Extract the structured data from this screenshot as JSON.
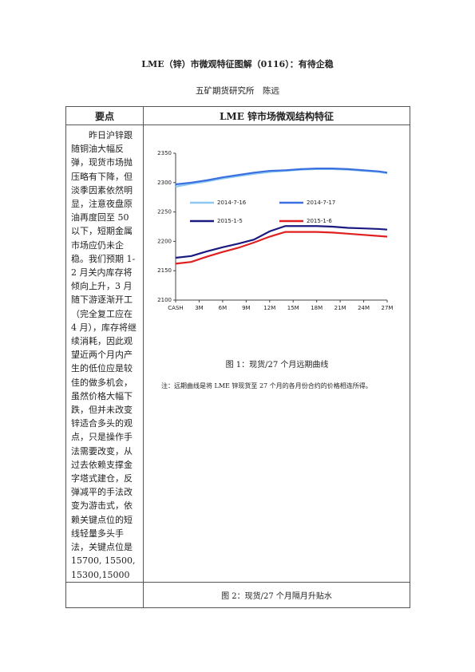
{
  "header": {
    "title": "LME（锌）市微观特征图解（0116）：有待企稳",
    "author": "五矿期货研究所　陈远"
  },
  "table": {
    "headers": [
      "要点",
      "LME 锌市场微观结构特征"
    ],
    "summary": "昨日沪锌跟随铜油大幅反弹，现货市场抛压略有下降，但淡季因素依然明显，注意夜盘原油再度回至 50 以下，短期金属市场应仍未企稳。我们预期 1-2 月关内库存将倾向上升，3 月随下游逐渐开工（完全复工应在 4 月），库存将继续消耗，因此观望近两个月内产生的低位应是较佳的做多机会，虽然价格大幅下跌，但并未改变锌适合多头的观点，只是操作手法需要改变，从过去依赖支撑金字塔式建仓，反弹减平的手法改变为游击式，依赖关键点位的短线轻量多头手法，关键点位是 15700, 15500,15300,15000",
    "figure1": {
      "caption": "图 1：现货/27 个月远期曲线",
      "note": "注：远期曲线是将 LME 锌现货至 27 个月的各月份合约的价格相连所得。"
    },
    "figure2": {
      "caption": "图 2：现货/27 个月隔月升贴水"
    }
  },
  "chart_data": {
    "type": "line",
    "x": [
      0,
      2,
      4,
      6,
      8,
      10,
      12,
      14,
      16,
      18,
      20,
      22,
      24,
      26,
      27
    ],
    "xlim": [
      0,
      27
    ],
    "xticks": [
      {
        "value": 0,
        "label": "CASH"
      },
      {
        "value": 3,
        "label": "3M"
      },
      {
        "value": 6,
        "label": "6M"
      },
      {
        "value": 9,
        "label": "9M"
      },
      {
        "value": 12,
        "label": "12M"
      },
      {
        "value": 15,
        "label": "15M"
      },
      {
        "value": 18,
        "label": "18M"
      },
      {
        "value": 21,
        "label": "21M"
      },
      {
        "value": 24,
        "label": "24M"
      },
      {
        "value": 27,
        "label": "27M"
      }
    ],
    "ylim": [
      2100,
      2350
    ],
    "yticks": [
      2100,
      2150,
      2200,
      2250,
      2300,
      2350
    ],
    "series": [
      {
        "name": "2014-7-16",
        "color": "#8cc8f0",
        "values": [
          2293,
          2298,
          2302,
          2307,
          2311,
          2315,
          2318,
          2320,
          2322,
          2323,
          2323,
          2322,
          2320,
          2318,
          2316
        ]
      },
      {
        "name": "2014-7-17",
        "color": "#3a6fe0",
        "values": [
          2297,
          2300,
          2304,
          2309,
          2313,
          2317,
          2320,
          2321,
          2323,
          2324,
          2324,
          2323,
          2321,
          2319,
          2317
        ]
      },
      {
        "name": "2015-1-5",
        "color": "#1a1a80",
        "values": [
          2172,
          2175,
          2183,
          2190,
          2196,
          2203,
          2217,
          2226,
          2226,
          2226,
          2225,
          2223,
          2222,
          2221,
          2220
        ]
      },
      {
        "name": "2015-1-6",
        "color": "#e02020",
        "values": [
          2162,
          2165,
          2174,
          2182,
          2189,
          2198,
          2208,
          2216,
          2216,
          2216,
          2215,
          2213,
          2211,
          2209,
          2208
        ]
      }
    ]
  }
}
